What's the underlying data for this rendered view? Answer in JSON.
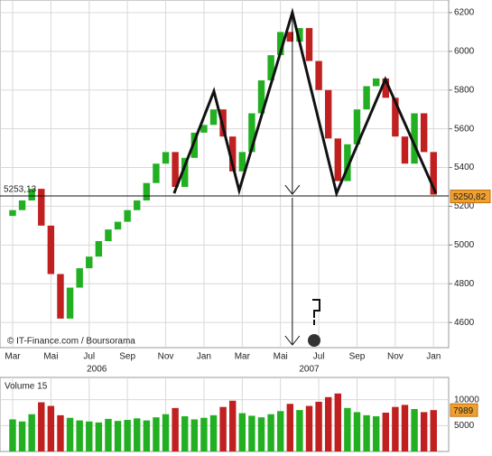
{
  "chart_data": [
    {
      "type": "candlestick",
      "credit": "© IT-Finance.com / Boursorama",
      "x": [
        0,
        0.5,
        1,
        1.5,
        2,
        2.5,
        3,
        3.5,
        4,
        4.5,
        5,
        5.5,
        6,
        6.5,
        7,
        7.5,
        8,
        8.5,
        9,
        9.5,
        10,
        10.5,
        11,
        11.5,
        12,
        12.5,
        13,
        13.5,
        14,
        14.5,
        15,
        15.5,
        16,
        16.5,
        17,
        17.5,
        18,
        18.5,
        19,
        19.5,
        20,
        20.5,
        21,
        21.5,
        22
      ],
      "open": [
        5150,
        5180,
        5230,
        5290,
        5100,
        4850,
        4620,
        4780,
        4880,
        4940,
        5020,
        5080,
        5120,
        5180,
        5230,
        5320,
        5420,
        5480,
        5300,
        5450,
        5580,
        5620,
        5700,
        5560,
        5380,
        5480,
        5680,
        5850,
        5980,
        6100,
        6050,
        6120,
        5950,
        5800,
        5550,
        5330,
        5520,
        5700,
        5820,
        5860,
        5760,
        5560,
        5420,
        5680,
        5480
      ],
      "close": [
        5180,
        5230,
        5290,
        5100,
        4850,
        4620,
        4780,
        4880,
        4940,
        5020,
        5080,
        5120,
        5180,
        5230,
        5320,
        5420,
        5480,
        5300,
        5450,
        5580,
        5620,
        5700,
        5560,
        5380,
        5480,
        5680,
        5850,
        5980,
        6100,
        6050,
        6120,
        5950,
        5800,
        5550,
        5330,
        5520,
        5700,
        5820,
        5860,
        5760,
        5560,
        5420,
        5680,
        5480,
        5260
      ],
      "up_color": "#22b022",
      "down_color": "#c02020",
      "xlim": [
        -0.66,
        22.79
      ],
      "xticks": [
        {
          "value": 0,
          "label": "Mar"
        },
        {
          "value": 2,
          "label": "Mai"
        },
        {
          "value": 4,
          "label": "Jul"
        },
        {
          "value": 6,
          "label": "Sep"
        },
        {
          "value": 8,
          "label": "Nov"
        },
        {
          "value": 10,
          "label": "Jan"
        },
        {
          "value": 12,
          "label": "Mar"
        },
        {
          "value": 14,
          "label": "Mai"
        },
        {
          "value": 16,
          "label": "Jul"
        },
        {
          "value": 18,
          "label": "Sep"
        },
        {
          "value": 20,
          "label": "Nov"
        },
        {
          "value": 22,
          "label": "Jan"
        }
      ],
      "year_labels": [
        {
          "value": 4.4,
          "label": "2006"
        },
        {
          "value": 15.5,
          "label": "2007"
        }
      ],
      "ylim": [
        4470,
        6265
      ],
      "yticks": [
        4600,
        4800,
        5000,
        5200,
        5400,
        5600,
        5800,
        6000,
        6200
      ],
      "grid": true,
      "reference_line": {
        "value": 5253.13,
        "label": "5253,13"
      },
      "last_price": {
        "value": 5250.82,
        "label": "5250,82"
      },
      "pattern": {
        "x": [
          8.44,
          10.52,
          11.84,
          14.62,
          16.93,
          19.48,
          22.12
        ],
        "y": [
          5267,
          5794,
          5281,
          6200,
          5267,
          5855,
          5267
        ],
        "color": "#111111"
      }
    },
    {
      "type": "bar",
      "title": "Volume 15",
      "values": [
        6200,
        5800,
        7200,
        9500,
        8800,
        7000,
        6500,
        6000,
        5800,
        5600,
        6300,
        5900,
        6100,
        6400,
        6000,
        6600,
        7200,
        8400,
        6800,
        6200,
        6500,
        7000,
        8600,
        9800,
        7400,
        6900,
        6600,
        7200,
        7800,
        9200,
        8000,
        8800,
        9600,
        10500,
        11200,
        8400,
        7600,
        7000,
        6800,
        7500,
        8600,
        9000,
        8200,
        7600,
        7989
      ],
      "color": "#2a9a2a",
      "ylim": [
        0,
        14300
      ],
      "yticks": [
        5000,
        10000
      ],
      "last_volume": {
        "value": 7989,
        "label": "7989"
      }
    }
  ]
}
